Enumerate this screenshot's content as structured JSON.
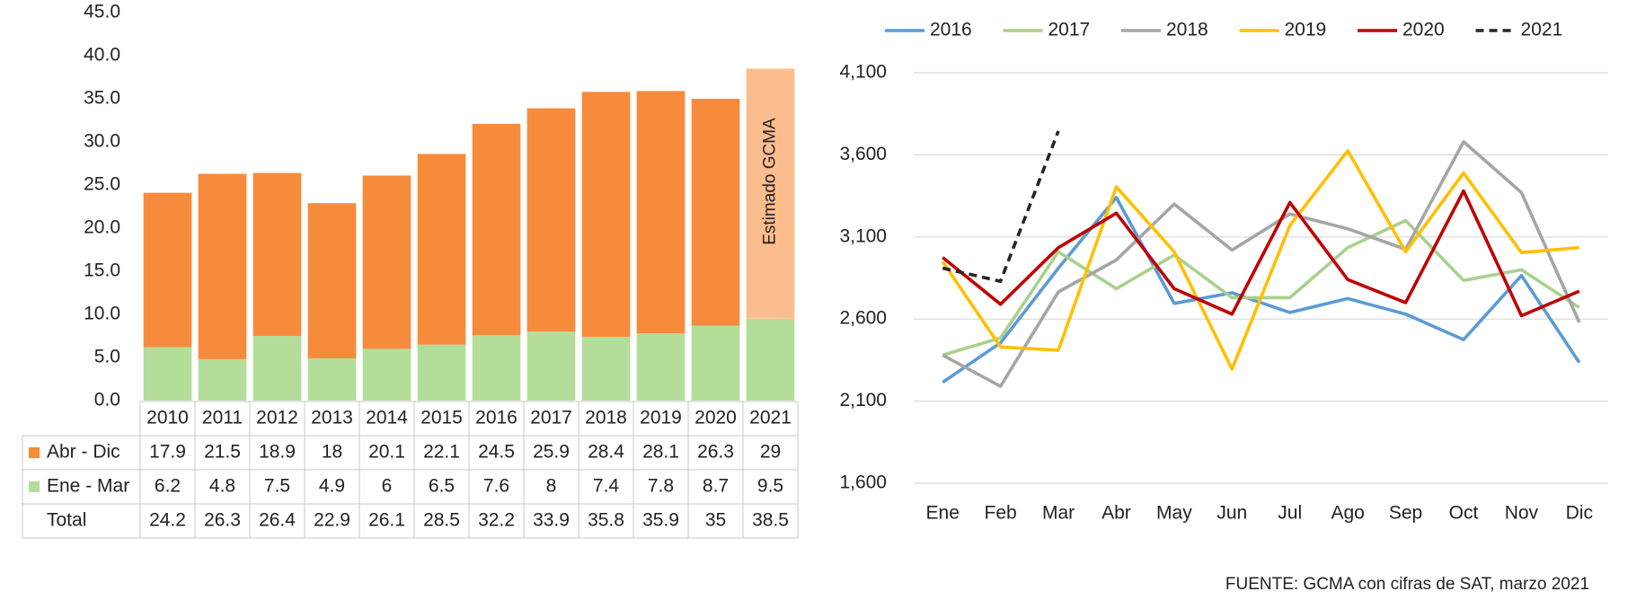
{
  "chart_data": [
    {
      "type": "stacked_bar_table",
      "categories": [
        "2010",
        "2011",
        "2012",
        "2013",
        "2014",
        "2015",
        "2016",
        "2017",
        "2018",
        "2019",
        "2020",
        "2021"
      ],
      "series": [
        {
          "name": "Ene - Mar",
          "color": "#b4dd9a",
          "estimate_color": "#b4dd9a",
          "values": [
            6.2,
            4.8,
            7.5,
            4.9,
            6.0,
            6.5,
            7.6,
            8.0,
            7.4,
            7.8,
            8.7,
            9.5
          ]
        },
        {
          "name": "Abr - Dic",
          "color": "#f78b3c",
          "estimate_color": "#fcbd8e",
          "values": [
            17.9,
            21.5,
            18.9,
            18.0,
            20.1,
            22.1,
            24.5,
            25.9,
            28.4,
            28.1,
            26.3,
            29.0
          ]
        }
      ],
      "totals": {
        "name": "Total",
        "values": [
          24.2,
          26.3,
          26.4,
          22.9,
          26.1,
          28.5,
          32.2,
          33.9,
          35.8,
          35.9,
          35.0,
          38.5
        ]
      },
      "annotation": "Estimado GCMA",
      "ylim": [
        0,
        45
      ],
      "yticks": [
        {
          "value": 0,
          "label": "0.0"
        },
        {
          "value": 5,
          "label": "5.0"
        },
        {
          "value": 10,
          "label": "10.0"
        },
        {
          "value": 15,
          "label": "15.0"
        },
        {
          "value": 20,
          "label": "20.0"
        },
        {
          "value": 25,
          "label": "25.0"
        },
        {
          "value": 30,
          "label": "30.0"
        },
        {
          "value": 35,
          "label": "35.0"
        },
        {
          "value": 40,
          "label": "40.0"
        },
        {
          "value": 45,
          "label": "45.0"
        }
      ],
      "grid": false
    },
    {
      "type": "line",
      "categories": [
        "Ene",
        "Feb",
        "Mar",
        "Abr",
        "May",
        "Jun",
        "Jul",
        "Ago",
        "Sep",
        "Oct",
        "Nov",
        "Dic"
      ],
      "series": [
        {
          "name": "2016",
          "color": "#5b9bd5",
          "values": [
            2215,
            2455,
            2910,
            3340,
            2695,
            2760,
            2640,
            2725,
            2630,
            2475,
            2865,
            2335
          ]
        },
        {
          "name": "2017",
          "color": "#a9d18e",
          "values": [
            2380,
            2485,
            3010,
            2785,
            2990,
            2730,
            2730,
            3035,
            3200,
            2835,
            2900,
            2670
          ]
        },
        {
          "name": "2018",
          "color": "#a5a5a5",
          "values": [
            2380,
            2190,
            2765,
            2960,
            3300,
            3020,
            3240,
            3150,
            3025,
            3680,
            3370,
            2580
          ]
        },
        {
          "name": "2019",
          "color": "#ffc000",
          "values": [
            2950,
            2430,
            2410,
            3405,
            3010,
            2295,
            3170,
            3625,
            3010,
            3490,
            3005,
            3035
          ]
        },
        {
          "name": "2020",
          "color": "#c00000",
          "values": [
            2975,
            2690,
            3035,
            3245,
            2785,
            2630,
            3310,
            2840,
            2700,
            3380,
            2620,
            2770
          ]
        },
        {
          "name": "2021",
          "color": "#262626",
          "dashed": true,
          "values": [
            2910,
            2830,
            3745,
            null,
            null,
            null,
            null,
            null,
            null,
            null,
            null,
            null
          ]
        }
      ],
      "ylim": [
        1600,
        4100
      ],
      "yticks": [
        {
          "value": 1600,
          "label": "1,600"
        },
        {
          "value": 2100,
          "label": "2,100"
        },
        {
          "value": 2600,
          "label": "2,600"
        },
        {
          "value": 3100,
          "label": "3,100"
        },
        {
          "value": 3600,
          "label": "3,600"
        },
        {
          "value": 4100,
          "label": "4,100"
        }
      ],
      "grid": true,
      "legend": "top",
      "source": "FUENTE: GCMA con cifras de SAT, marzo 2021"
    }
  ]
}
